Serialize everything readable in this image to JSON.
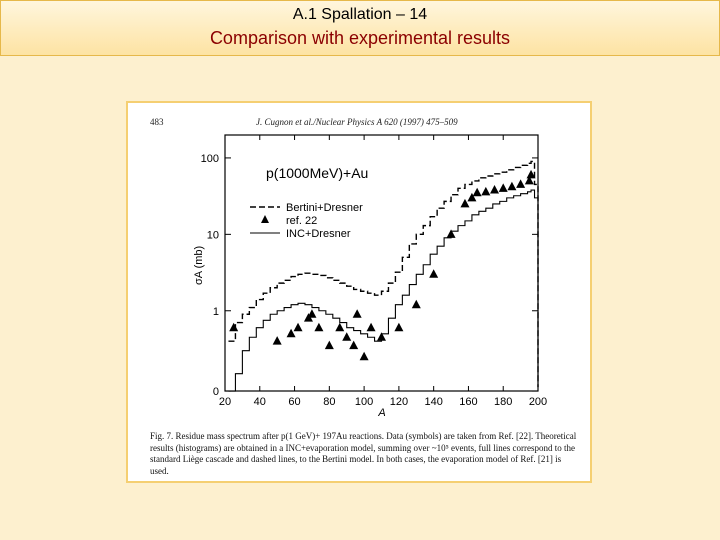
{
  "slide": {
    "title": "A.1 Spallation – 14",
    "subtitle": "Comparison with experimental results"
  },
  "figure": {
    "page_number": "483",
    "running_head": "J. Cugnon et al./Nuclear Physics A 620 (1997) 475–509",
    "caption": "Fig. 7. Residue mass spectrum after p(1 GeV)+ 197Au reactions. Data (symbols) are taken from Ref. [22]. Theoretical results (histograms) are obtained in a INC+evaporation model, summing over ~10⁵ events, full lines correspond to the standard Liège cascade and dashed lines, to the Bertini model. In both cases, the evaporation model of Ref. [21] is used."
  },
  "chart_data": {
    "type": "line",
    "title": "p(1000MeV)+Au",
    "xlabel": "A",
    "ylabel": "σA (mb)",
    "xlim": [
      20,
      200
    ],
    "yscale": "log",
    "ylim": [
      0,
      100
    ],
    "xticks": [
      "20",
      "40",
      "60",
      "80",
      "100",
      "120",
      "140",
      "160",
      "180",
      "200"
    ],
    "yticks": [
      "0",
      "1",
      "10",
      "100"
    ],
    "legend_position": "upper-left",
    "legend": [
      "Bertini+Dresner",
      "ref. 22",
      "INC+Dresner"
    ],
    "series": [
      {
        "name": "Bertini+Dresner",
        "style": "dashed",
        "x": [
          22,
          26,
          30,
          34,
          38,
          42,
          46,
          50,
          54,
          58,
          62,
          66,
          70,
          74,
          78,
          82,
          86,
          90,
          94,
          98,
          102,
          106,
          110,
          114,
          118,
          122,
          126,
          130,
          134,
          138,
          142,
          146,
          150,
          154,
          158,
          162,
          166,
          170,
          174,
          178,
          182,
          186,
          190,
          194,
          196,
          198,
          200
        ],
        "y": [
          0.4,
          0.7,
          0.9,
          1.1,
          1.4,
          1.7,
          2.0,
          2.3,
          2.5,
          2.8,
          3.0,
          3.1,
          3.0,
          2.9,
          2.7,
          2.5,
          2.3,
          2.1,
          1.9,
          1.8,
          1.7,
          1.6,
          1.8,
          2.3,
          3.2,
          5.0,
          7.5,
          10,
          13,
          17,
          22,
          27,
          33,
          40,
          45,
          50,
          55,
          58,
          62,
          65,
          70,
          75,
          80,
          85,
          90,
          45,
          0.1
        ]
      },
      {
        "name": "INC+Dresner",
        "style": "solid",
        "x": [
          22,
          26,
          30,
          34,
          38,
          42,
          46,
          50,
          54,
          58,
          62,
          66,
          70,
          74,
          78,
          82,
          86,
          90,
          94,
          98,
          102,
          106,
          110,
          114,
          118,
          122,
          126,
          130,
          134,
          138,
          142,
          146,
          150,
          154,
          158,
          162,
          166,
          170,
          174,
          178,
          182,
          186,
          190,
          194,
          196,
          198,
          200
        ],
        "y": [
          0.08,
          0.15,
          0.3,
          0.45,
          0.6,
          0.75,
          0.9,
          1.0,
          1.1,
          1.2,
          1.25,
          1.2,
          1.1,
          1.0,
          0.9,
          0.8,
          0.7,
          0.6,
          0.55,
          0.5,
          0.45,
          0.4,
          0.5,
          0.8,
          1.2,
          1.6,
          2.2,
          3.0,
          4.0,
          5.5,
          7,
          9,
          11,
          13,
          15,
          18,
          20,
          22,
          25,
          27,
          30,
          32,
          34,
          36,
          38,
          30,
          0.1
        ]
      },
      {
        "name": "ref. 22",
        "style": "markers",
        "x": [
          25,
          50,
          58,
          62,
          68,
          70,
          74,
          80,
          86,
          90,
          94,
          96,
          100,
          104,
          110,
          120,
          130,
          140,
          150,
          158,
          162,
          165,
          170,
          175,
          180,
          185,
          190,
          195,
          196
        ],
        "y": [
          0.6,
          0.4,
          0.5,
          0.6,
          0.8,
          0.9,
          0.6,
          0.35,
          0.6,
          0.45,
          0.35,
          0.9,
          0.25,
          0.6,
          0.45,
          0.6,
          1.2,
          3.0,
          10,
          25,
          30,
          35,
          36,
          38,
          40,
          42,
          45,
          50,
          60
        ]
      }
    ]
  }
}
